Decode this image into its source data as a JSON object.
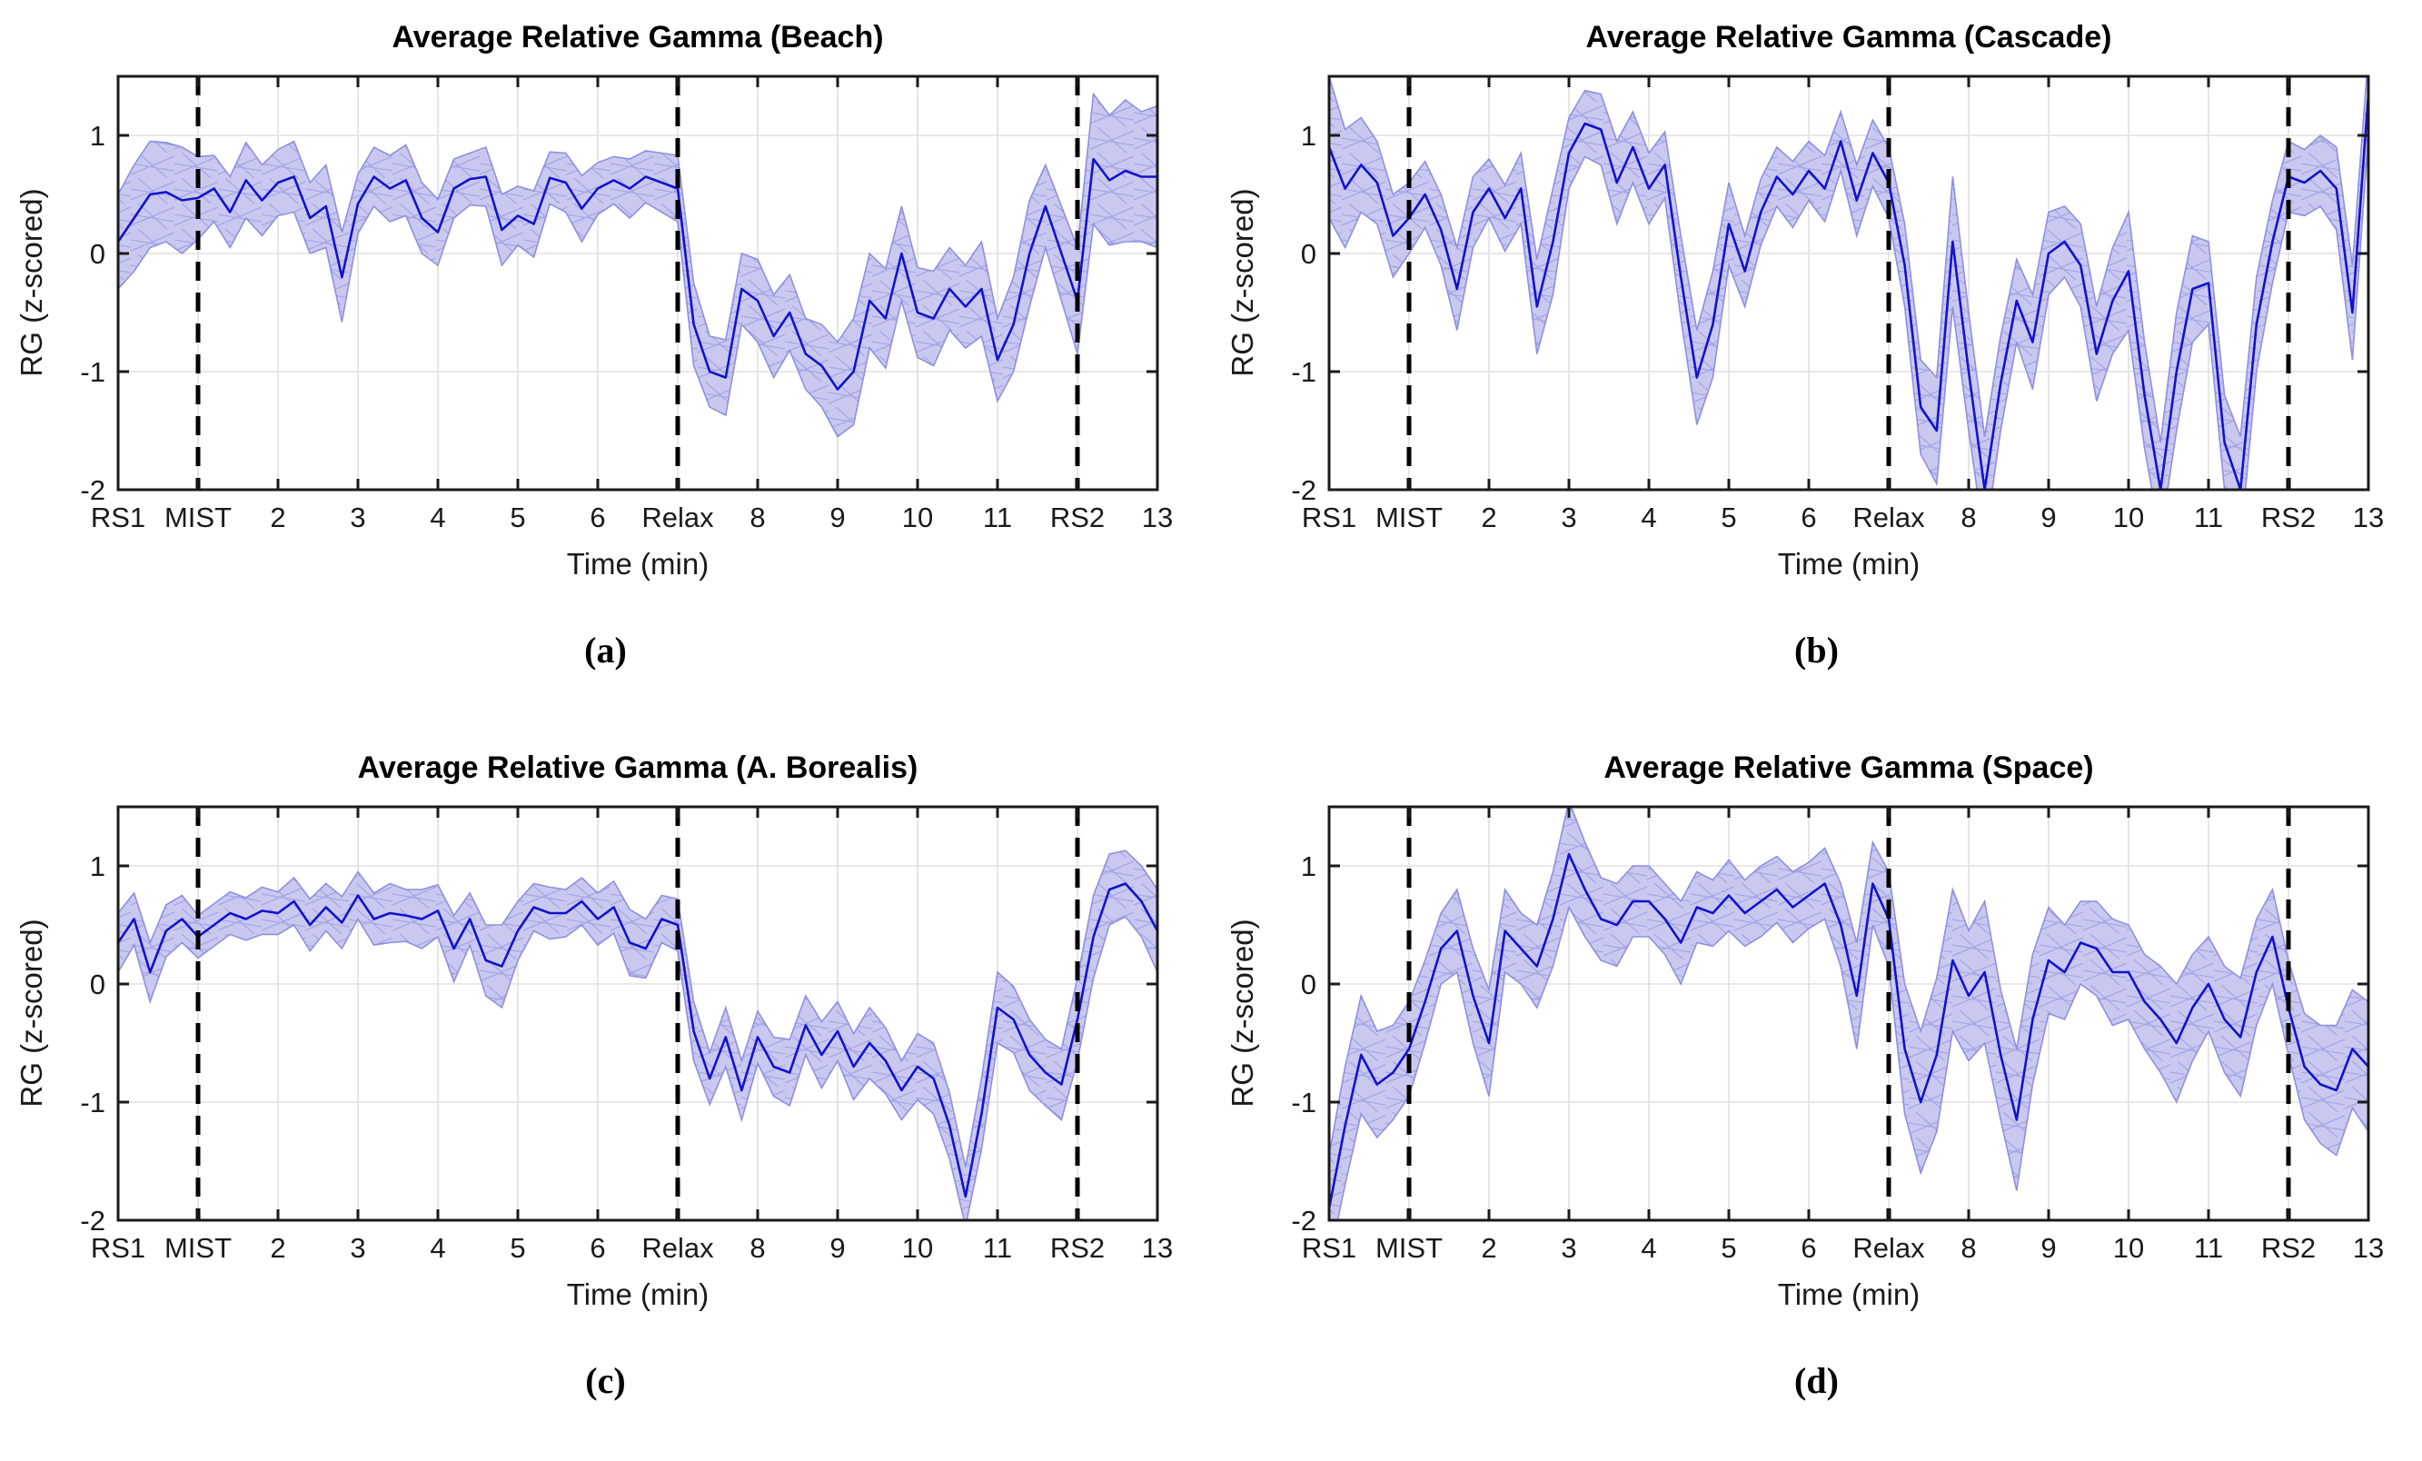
{
  "styles": {
    "line_color": "#1212cd",
    "band_color": "#c9c9f0",
    "band_edge_color": "#8f8fdf",
    "hatch_color": "#8888dd",
    "event_line_color": "#000000",
    "grid_color": "#e0e0e0",
    "axis_color": "#1a1a1a",
    "background": "#ffffff"
  },
  "chart_data": [
    {
      "type": "line",
      "panel_label": "(a)",
      "title": "Average Relative Gamma (Beach)",
      "xlabel": "Time (min)",
      "ylabel": "RG (z-scored)",
      "xlim": [
        0,
        13
      ],
      "ylim": [
        -2,
        1.5
      ],
      "grid": true,
      "legend": "none",
      "x_tick_values": [
        0,
        1,
        2,
        3,
        4,
        5,
        6,
        7,
        8,
        9,
        10,
        11,
        12,
        13
      ],
      "x_tick_labels": [
        "RS1",
        "MIST",
        "2",
        "3",
        "4",
        "5",
        "6",
        "Relax",
        "8",
        "9",
        "10",
        "11",
        "RS2",
        "13"
      ],
      "y_tick_values": [
        1,
        0,
        -1,
        -2
      ],
      "y_tick_labels": [
        "1",
        "0",
        "-1",
        "-2"
      ],
      "event_lines_x": [
        1,
        7,
        12
      ],
      "x_start": 0,
      "x_step": 0.2,
      "series": [
        {
          "name": "mean",
          "values": [
            0.1,
            0.3,
            0.5,
            0.52,
            0.45,
            0.47,
            0.55,
            0.35,
            0.62,
            0.45,
            0.6,
            0.65,
            0.3,
            0.4,
            -0.2,
            0.42,
            0.65,
            0.55,
            0.62,
            0.3,
            0.18,
            0.55,
            0.63,
            0.65,
            0.2,
            0.32,
            0.25,
            0.64,
            0.6,
            0.38,
            0.55,
            0.62,
            0.55,
            0.65,
            0.6,
            0.55,
            -0.6,
            -1.0,
            -1.05,
            -0.3,
            -0.4,
            -0.7,
            -0.5,
            -0.85,
            -0.95,
            -1.15,
            -1.0,
            -0.4,
            -0.55,
            0.0,
            -0.5,
            -0.55,
            -0.3,
            -0.45,
            -0.3,
            -0.9,
            -0.6,
            0.0,
            0.4,
            0.0,
            -0.4,
            0.8,
            0.62,
            0.7,
            0.65,
            0.65
          ]
        },
        {
          "name": "ci_halfwidth",
          "values": [
            0.4,
            0.45,
            0.45,
            0.42,
            0.45,
            0.35,
            0.28,
            0.3,
            0.32,
            0.3,
            0.28,
            0.3,
            0.3,
            0.35,
            0.38,
            0.25,
            0.25,
            0.28,
            0.3,
            0.3,
            0.28,
            0.25,
            0.22,
            0.25,
            0.3,
            0.25,
            0.28,
            0.22,
            0.25,
            0.28,
            0.22,
            0.2,
            0.25,
            0.22,
            0.25,
            0.28,
            0.35,
            0.3,
            0.32,
            0.3,
            0.35,
            0.35,
            0.32,
            0.3,
            0.35,
            0.4,
            0.45,
            0.4,
            0.42,
            0.4,
            0.38,
            0.4,
            0.35,
            0.35,
            0.4,
            0.35,
            0.4,
            0.45,
            0.35,
            0.4,
            0.45,
            0.55,
            0.55,
            0.6,
            0.55,
            0.6
          ]
        }
      ]
    },
    {
      "type": "line",
      "panel_label": "(b)",
      "title": "Average Relative Gamma (Cascade)",
      "xlabel": "Time (min)",
      "ylabel": "RG (z-scored)",
      "xlim": [
        0,
        13
      ],
      "ylim": [
        -2,
        1.5
      ],
      "grid": true,
      "legend": "none",
      "x_tick_values": [
        0,
        1,
        2,
        3,
        4,
        5,
        6,
        7,
        8,
        9,
        10,
        11,
        12,
        13
      ],
      "x_tick_labels": [
        "RS1",
        "MIST",
        "2",
        "3",
        "4",
        "5",
        "6",
        "Relax",
        "8",
        "9",
        "10",
        "11",
        "RS2",
        "13"
      ],
      "y_tick_values": [
        1,
        0,
        -1,
        -2
      ],
      "y_tick_labels": [
        "1",
        "0",
        "-1",
        "-2"
      ],
      "event_lines_x": [
        1,
        7,
        12
      ],
      "x_start": 0,
      "x_step": 0.2,
      "series": [
        {
          "name": "mean",
          "values": [
            0.9,
            0.55,
            0.75,
            0.6,
            0.15,
            0.3,
            0.5,
            0.2,
            -0.3,
            0.35,
            0.55,
            0.3,
            0.55,
            -0.45,
            0.1,
            0.85,
            1.1,
            1.05,
            0.6,
            0.9,
            0.55,
            0.75,
            -0.2,
            -1.05,
            -0.6,
            0.25,
            -0.15,
            0.35,
            0.65,
            0.5,
            0.7,
            0.55,
            0.95,
            0.45,
            0.85,
            0.6,
            -0.1,
            -1.3,
            -1.5,
            0.1,
            -1.0,
            -2.0,
            -1.1,
            -0.4,
            -0.75,
            0.0,
            0.1,
            -0.1,
            -0.85,
            -0.4,
            -0.15,
            -1.2,
            -2.0,
            -1.0,
            -0.3,
            -0.25,
            -1.6,
            -2.0,
            -0.6,
            0.1,
            0.65,
            0.6,
            0.7,
            0.55,
            -0.5,
            1.35
          ]
        },
        {
          "name": "ci_halfwidth",
          "values": [
            0.6,
            0.5,
            0.4,
            0.35,
            0.35,
            0.3,
            0.28,
            0.3,
            0.35,
            0.3,
            0.25,
            0.28,
            0.3,
            0.4,
            0.45,
            0.3,
            0.28,
            0.3,
            0.35,
            0.3,
            0.3,
            0.28,
            0.35,
            0.4,
            0.45,
            0.35,
            0.3,
            0.28,
            0.25,
            0.28,
            0.25,
            0.28,
            0.25,
            0.3,
            0.28,
            0.3,
            0.35,
            0.4,
            0.45,
            0.55,
            0.5,
            0.45,
            0.4,
            0.35,
            0.4,
            0.35,
            0.3,
            0.35,
            0.4,
            0.45,
            0.5,
            0.45,
            0.4,
            0.5,
            0.45,
            0.35,
            0.4,
            0.45,
            0.4,
            0.35,
            0.3,
            0.28,
            0.3,
            0.35,
            0.4,
            0.35
          ]
        }
      ]
    },
    {
      "type": "line",
      "panel_label": "(c)",
      "title": "Average Relative Gamma (A. Borealis)",
      "xlabel": "Time (min)",
      "ylabel": "RG (z-scored)",
      "xlim": [
        0,
        13
      ],
      "ylim": [
        -2,
        1.5
      ],
      "grid": true,
      "legend": "none",
      "x_tick_values": [
        0,
        1,
        2,
        3,
        4,
        5,
        6,
        7,
        8,
        9,
        10,
        11,
        12,
        13
      ],
      "x_tick_labels": [
        "RS1",
        "MIST",
        "2",
        "3",
        "4",
        "5",
        "6",
        "Relax",
        "8",
        "9",
        "10",
        "11",
        "RS2",
        "13"
      ],
      "y_tick_values": [
        1,
        0,
        -1,
        -2
      ],
      "y_tick_labels": [
        "1",
        "0",
        "-1",
        "-2"
      ],
      "event_lines_x": [
        1,
        7,
        12
      ],
      "x_start": 0,
      "x_step": 0.2,
      "series": [
        {
          "name": "mean",
          "values": [
            0.35,
            0.55,
            0.1,
            0.45,
            0.55,
            0.4,
            0.5,
            0.6,
            0.55,
            0.62,
            0.6,
            0.7,
            0.5,
            0.65,
            0.52,
            0.75,
            0.55,
            0.6,
            0.58,
            0.55,
            0.62,
            0.3,
            0.55,
            0.2,
            0.15,
            0.45,
            0.65,
            0.6,
            0.6,
            0.7,
            0.55,
            0.65,
            0.35,
            0.3,
            0.55,
            0.5,
            -0.4,
            -0.8,
            -0.45,
            -0.9,
            -0.45,
            -0.7,
            -0.75,
            -0.35,
            -0.6,
            -0.4,
            -0.7,
            -0.5,
            -0.65,
            -0.9,
            -0.7,
            -0.8,
            -1.2,
            -1.8,
            -1.1,
            -0.2,
            -0.3,
            -0.6,
            -0.75,
            -0.85,
            -0.3,
            0.4,
            0.8,
            0.85,
            0.7,
            0.45
          ]
        },
        {
          "name": "ci_halfwidth",
          "values": [
            0.25,
            0.22,
            0.25,
            0.22,
            0.2,
            0.18,
            0.18,
            0.18,
            0.18,
            0.2,
            0.18,
            0.2,
            0.22,
            0.2,
            0.22,
            0.2,
            0.22,
            0.25,
            0.22,
            0.25,
            0.22,
            0.28,
            0.22,
            0.3,
            0.35,
            0.25,
            0.2,
            0.22,
            0.2,
            0.2,
            0.22,
            0.22,
            0.28,
            0.25,
            0.2,
            0.22,
            0.25,
            0.22,
            0.25,
            0.25,
            0.22,
            0.25,
            0.28,
            0.25,
            0.28,
            0.25,
            0.28,
            0.3,
            0.28,
            0.25,
            0.28,
            0.3,
            0.28,
            0.25,
            0.3,
            0.3,
            0.28,
            0.3,
            0.28,
            0.3,
            0.35,
            0.35,
            0.3,
            0.28,
            0.3,
            0.35
          ]
        }
      ]
    },
    {
      "type": "line",
      "panel_label": "(d)",
      "title": "Average Relative Gamma (Space)",
      "xlabel": "Time (min)",
      "ylabel": "RG (z-scored)",
      "xlim": [
        0,
        13
      ],
      "ylim": [
        -2,
        1.5
      ],
      "grid": true,
      "legend": "none",
      "x_tick_values": [
        0,
        1,
        2,
        3,
        4,
        5,
        6,
        7,
        8,
        9,
        10,
        11,
        12,
        13
      ],
      "x_tick_labels": [
        "RS1",
        "MIST",
        "2",
        "3",
        "4",
        "5",
        "6",
        "Relax",
        "8",
        "9",
        "10",
        "11",
        "RS2",
        "13"
      ],
      "y_tick_values": [
        1,
        0,
        -1,
        -2
      ],
      "y_tick_labels": [
        "1",
        "0",
        "-1",
        "-2"
      ],
      "event_lines_x": [
        1,
        7,
        12
      ],
      "x_start": 0,
      "x_step": 0.2,
      "series": [
        {
          "name": "mean",
          "values": [
            -1.9,
            -1.2,
            -0.6,
            -0.85,
            -0.75,
            -0.55,
            -0.15,
            0.3,
            0.45,
            -0.1,
            -0.5,
            0.45,
            0.3,
            0.15,
            0.55,
            1.1,
            0.8,
            0.55,
            0.5,
            0.7,
            0.7,
            0.55,
            0.35,
            0.65,
            0.6,
            0.75,
            0.6,
            0.7,
            0.8,
            0.65,
            0.75,
            0.85,
            0.5,
            -0.1,
            0.85,
            0.55,
            -0.55,
            -1.0,
            -0.6,
            0.2,
            -0.1,
            0.1,
            -0.6,
            -1.15,
            -0.3,
            0.2,
            0.1,
            0.35,
            0.3,
            0.1,
            0.1,
            -0.15,
            -0.3,
            -0.5,
            -0.2,
            0.0,
            -0.3,
            -0.45,
            0.1,
            0.4,
            -0.2,
            -0.7,
            -0.85,
            -0.9,
            -0.55,
            -0.7
          ]
        },
        {
          "name": "ci_halfwidth",
          "values": [
            0.45,
            0.5,
            0.5,
            0.45,
            0.4,
            0.4,
            0.35,
            0.3,
            0.35,
            0.4,
            0.45,
            0.35,
            0.3,
            0.35,
            0.4,
            0.45,
            0.4,
            0.35,
            0.35,
            0.3,
            0.3,
            0.3,
            0.35,
            0.3,
            0.28,
            0.3,
            0.28,
            0.3,
            0.28,
            0.3,
            0.28,
            0.3,
            0.35,
            0.45,
            0.35,
            0.4,
            0.55,
            0.6,
            0.65,
            0.6,
            0.55,
            0.6,
            0.55,
            0.6,
            0.55,
            0.45,
            0.4,
            0.35,
            0.4,
            0.45,
            0.4,
            0.4,
            0.45,
            0.5,
            0.45,
            0.4,
            0.45,
            0.5,
            0.45,
            0.4,
            0.4,
            0.45,
            0.5,
            0.55,
            0.5,
            0.55
          ]
        }
      ]
    }
  ]
}
